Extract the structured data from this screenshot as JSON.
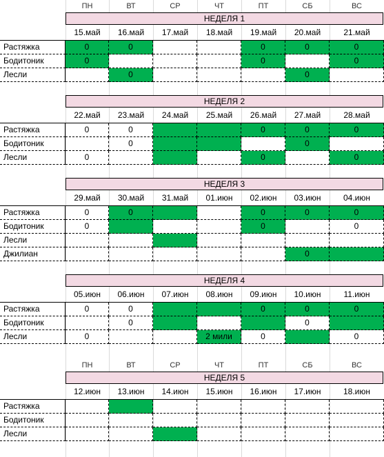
{
  "days": [
    "ПН",
    "ВТ",
    "СР",
    "ЧТ",
    "ПТ",
    "СБ",
    "ВС"
  ],
  "colors": {
    "active": "#00b050",
    "week_header": "#f3d9e3"
  },
  "weeks": [
    {
      "title": "НЕДЕЛЯ 1",
      "dates": [
        "15.май",
        "16.май",
        "17.май",
        "18.май",
        "19.май",
        "20.май",
        "21.май"
      ],
      "rows": [
        {
          "label": "Растяжка",
          "cells": [
            {
              "v": "0",
              "g": true
            },
            {
              "v": "0",
              "g": true
            },
            {
              "v": "",
              "g": false
            },
            {
              "v": "",
              "g": false
            },
            {
              "v": "0",
              "g": true
            },
            {
              "v": "0",
              "g": true
            },
            {
              "v": "0",
              "g": true
            }
          ]
        },
        {
          "label": "Бодитоник",
          "cells": [
            {
              "v": "0",
              "g": true
            },
            {
              "v": "",
              "g": false
            },
            {
              "v": "",
              "g": false
            },
            {
              "v": "",
              "g": false
            },
            {
              "v": "0",
              "g": true
            },
            {
              "v": "",
              "g": false
            },
            {
              "v": "0",
              "g": true
            }
          ]
        },
        {
          "label": "Лесли",
          "cells": [
            {
              "v": "",
              "g": false
            },
            {
              "v": "0",
              "g": true
            },
            {
              "v": "",
              "g": false
            },
            {
              "v": "",
              "g": false
            },
            {
              "v": "",
              "g": false
            },
            {
              "v": "0",
              "g": true
            },
            {
              "v": "",
              "g": false
            }
          ]
        }
      ]
    },
    {
      "title": "НЕДЕЛЯ 2",
      "dates": [
        "22.май",
        "23.май",
        "24.май",
        "25.май",
        "26.май",
        "27.май",
        "28.май"
      ],
      "rows": [
        {
          "label": "Растяжка",
          "cells": [
            {
              "v": "0",
              "g": false
            },
            {
              "v": "0",
              "g": false
            },
            {
              "v": "",
              "g": true
            },
            {
              "v": "",
              "g": true
            },
            {
              "v": "0",
              "g": true
            },
            {
              "v": "0",
              "g": true
            },
            {
              "v": "0",
              "g": true
            }
          ]
        },
        {
          "label": "Бодитоник",
          "cells": [
            {
              "v": "",
              "g": false
            },
            {
              "v": "0",
              "g": false
            },
            {
              "v": "",
              "g": true
            },
            {
              "v": "",
              "g": true
            },
            {
              "v": "",
              "g": false
            },
            {
              "v": "0",
              "g": true
            },
            {
              "v": "",
              "g": false
            }
          ]
        },
        {
          "label": "Лесли",
          "cells": [
            {
              "v": "0",
              "g": false
            },
            {
              "v": "",
              "g": false
            },
            {
              "v": "",
              "g": true
            },
            {
              "v": "",
              "g": false
            },
            {
              "v": "0",
              "g": true
            },
            {
              "v": "",
              "g": false
            },
            {
              "v": "0",
              "g": true
            }
          ]
        }
      ]
    },
    {
      "title": "НЕДЕЛЯ 3",
      "dates": [
        "29.май",
        "30.май",
        "31.май",
        "01.июн",
        "02.июн",
        "03.июн",
        "04.июн"
      ],
      "rows": [
        {
          "label": "Растяжка",
          "cells": [
            {
              "v": "0",
              "g": false
            },
            {
              "v": "0",
              "g": true
            },
            {
              "v": "",
              "g": true
            },
            {
              "v": "",
              "g": false
            },
            {
              "v": "0",
              "g": true
            },
            {
              "v": "0",
              "g": true
            },
            {
              "v": "0",
              "g": true
            }
          ]
        },
        {
          "label": "Бодитоник",
          "cells": [
            {
              "v": "0",
              "g": false
            },
            {
              "v": "",
              "g": true
            },
            {
              "v": "",
              "g": false
            },
            {
              "v": "",
              "g": false
            },
            {
              "v": "0",
              "g": true
            },
            {
              "v": "",
              "g": false
            },
            {
              "v": "0",
              "g": false
            }
          ]
        },
        {
          "label": "Лесли",
          "cells": [
            {
              "v": "",
              "g": false
            },
            {
              "v": "",
              "g": false
            },
            {
              "v": "",
              "g": true
            },
            {
              "v": "",
              "g": false
            },
            {
              "v": "",
              "g": false
            },
            {
              "v": "",
              "g": false
            },
            {
              "v": "",
              "g": false
            }
          ]
        },
        {
          "label": "Джилиан",
          "cells": [
            {
              "v": "",
              "g": false
            },
            {
              "v": "",
              "g": false
            },
            {
              "v": "",
              "g": false
            },
            {
              "v": "",
              "g": false
            },
            {
              "v": "",
              "g": false
            },
            {
              "v": "0",
              "g": true
            },
            {
              "v": "",
              "g": true
            }
          ]
        }
      ]
    },
    {
      "title": "НЕДЕЛЯ 4",
      "dates": [
        "05.июн",
        "06.июн",
        "07.июн",
        "08.июн",
        "09.июн",
        "10.июн",
        "11.июн"
      ],
      "rows": [
        {
          "label": "Растяжка",
          "cells": [
            {
              "v": "0",
              "g": false
            },
            {
              "v": "0",
              "g": false
            },
            {
              "v": "",
              "g": true
            },
            {
              "v": "",
              "g": true
            },
            {
              "v": "0",
              "g": true
            },
            {
              "v": "0",
              "g": true
            },
            {
              "v": "0",
              "g": true
            }
          ]
        },
        {
          "label": "Бодитоник",
          "cells": [
            {
              "v": "",
              "g": false
            },
            {
              "v": "0",
              "g": false
            },
            {
              "v": "",
              "g": true
            },
            {
              "v": "",
              "g": false
            },
            {
              "v": "",
              "g": true
            },
            {
              "v": "0",
              "g": false
            },
            {
              "v": "",
              "g": true
            }
          ]
        },
        {
          "label": "Лесли",
          "cells": [
            {
              "v": "0",
              "g": false
            },
            {
              "v": "",
              "g": false
            },
            {
              "v": "",
              "g": false
            },
            {
              "v": "2 мили",
              "g": true
            },
            {
              "v": "0",
              "g": false
            },
            {
              "v": "",
              "g": true
            },
            {
              "v": "0",
              "g": false
            }
          ]
        }
      ]
    },
    {
      "title": "НЕДЕЛЯ 5",
      "dates": [
        "12.июн",
        "13.июн",
        "14.июн",
        "15.июн",
        "16.июн",
        "17.июн",
        "18.июн"
      ],
      "rows": [
        {
          "label": "Растяжка",
          "cells": [
            {
              "v": "",
              "g": false
            },
            {
              "v": "",
              "g": true
            },
            {
              "v": "",
              "g": false
            },
            {
              "v": "",
              "g": false
            },
            {
              "v": "",
              "g": false
            },
            {
              "v": "",
              "g": false
            },
            {
              "v": "",
              "g": false
            }
          ]
        },
        {
          "label": "Бодитоник",
          "cells": [
            {
              "v": "",
              "g": false
            },
            {
              "v": "",
              "g": false
            },
            {
              "v": "",
              "g": false
            },
            {
              "v": "",
              "g": false
            },
            {
              "v": "",
              "g": false
            },
            {
              "v": "",
              "g": false
            },
            {
              "v": "",
              "g": false
            }
          ]
        },
        {
          "label": "Лесли",
          "cells": [
            {
              "v": "",
              "g": false
            },
            {
              "v": "",
              "g": false
            },
            {
              "v": "",
              "g": true
            },
            {
              "v": "",
              "g": false
            },
            {
              "v": "",
              "g": false
            },
            {
              "v": "",
              "g": false
            },
            {
              "v": "",
              "g": false
            }
          ]
        }
      ]
    }
  ]
}
